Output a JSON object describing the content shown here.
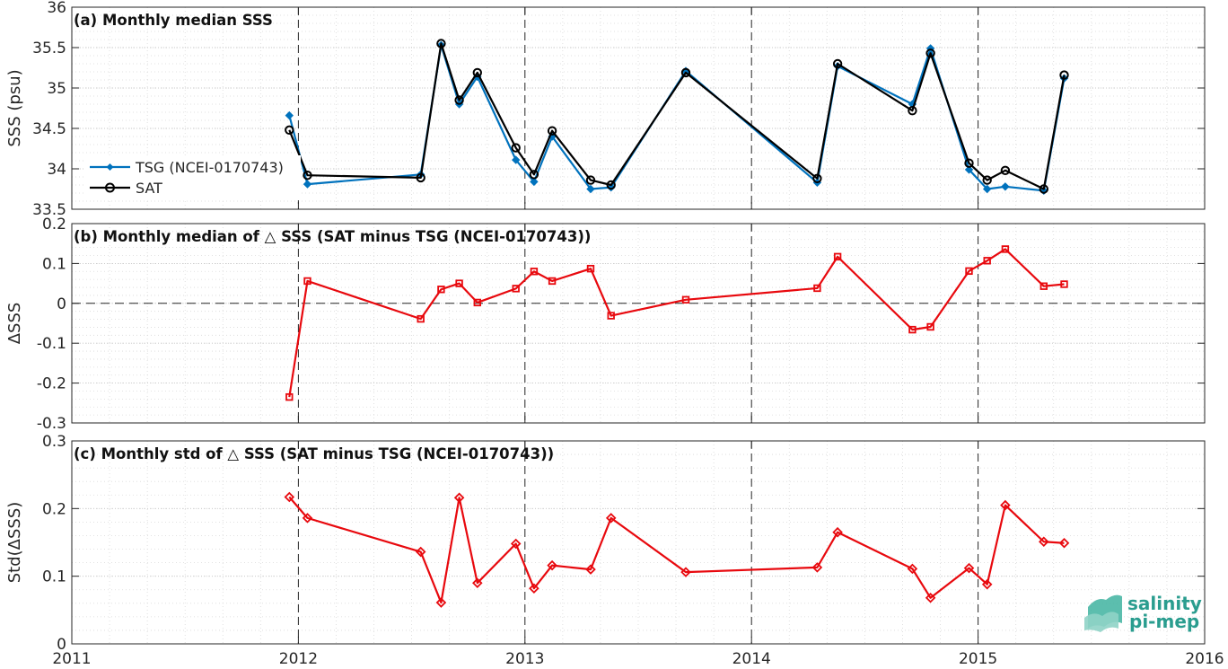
{
  "colors": {
    "tsg": "#0072BD",
    "sat": "#000000",
    "delta": "#E8090E",
    "grid": "#d9d9d9",
    "axis": "#262626",
    "logo": "#2aa198"
  },
  "logo": {
    "line1": "salinity",
    "line2": "pi-mep"
  },
  "chart_data": [
    {
      "type": "line",
      "panel": "a",
      "title": "(a) Monthly median SSS",
      "xlabel": "",
      "ylabel": "SSS (psu)",
      "xlim": [
        2011,
        2016
      ],
      "ylim": [
        33.5,
        36
      ],
      "yticks": [
        33.5,
        34,
        34.5,
        35,
        35.5,
        36
      ],
      "yticklabels": [
        "33.5",
        "34",
        "34.5",
        "35",
        "35.5",
        "36"
      ],
      "grid": "on",
      "legend": "left",
      "x": [
        2011.96,
        2012.04,
        2012.54,
        2012.63,
        2012.71,
        2012.79,
        2012.96,
        2013.04,
        2013.12,
        2013.29,
        2013.38,
        2013.71,
        2014.29,
        2014.38,
        2014.71,
        2014.79,
        2014.96,
        2015.04,
        2015.12,
        2015.29,
        2015.38
      ],
      "series": [
        {
          "name": "TSG (NCEI-0170743)",
          "marker": "diamond",
          "values": [
            34.66,
            33.81,
            33.93,
            35.53,
            34.8,
            35.14,
            34.11,
            33.84,
            34.4,
            33.75,
            33.77,
            35.21,
            33.83,
            35.27,
            34.8,
            35.49,
            33.99,
            33.75,
            33.78,
            33.73,
            35.12
          ]
        },
        {
          "name": "SAT",
          "marker": "circle",
          "values": [
            34.48,
            33.92,
            33.89,
            35.55,
            34.85,
            35.19,
            34.26,
            33.93,
            34.47,
            33.86,
            33.8,
            35.19,
            33.88,
            35.3,
            34.72,
            35.43,
            34.07,
            33.86,
            33.98,
            33.75,
            35.16
          ]
        }
      ]
    },
    {
      "type": "line",
      "panel": "b",
      "title": "(b) Monthly median of △ SSS (SAT minus TSG (NCEI-0170743))",
      "xlabel": "",
      "ylabel": "ΔSSS",
      "xlim": [
        2011,
        2016
      ],
      "ylim": [
        -0.3,
        0.2
      ],
      "yticks": [
        -0.3,
        -0.2,
        -0.1,
        0,
        0.1,
        0.2
      ],
      "yticklabels": [
        "-0.3",
        "-0.2",
        "-0.1",
        "0",
        "0.1",
        "0.2"
      ],
      "grid": "on",
      "x": [
        2011.96,
        2012.04,
        2012.54,
        2012.63,
        2012.71,
        2012.79,
        2012.96,
        2013.04,
        2013.12,
        2013.29,
        2013.38,
        2013.71,
        2014.29,
        2014.38,
        2014.71,
        2014.79,
        2014.96,
        2015.04,
        2015.12,
        2015.29,
        2015.38
      ],
      "series": [
        {
          "marker": "square",
          "values": [
            -0.235,
            0.056,
            -0.039,
            0.035,
            0.05,
            0.002,
            0.037,
            0.08,
            0.056,
            0.087,
            -0.031,
            0.009,
            0.038,
            0.117,
            -0.066,
            -0.059,
            0.081,
            0.107,
            0.136,
            0.043,
            0.048
          ]
        }
      ]
    },
    {
      "type": "line",
      "panel": "c",
      "title": "(c) Monthly std of △ SSS (SAT minus TSG (NCEI-0170743))",
      "xlabel": "",
      "ylabel": "Std(ΔSSS)",
      "xlim": [
        2011,
        2016
      ],
      "ylim": [
        0,
        0.3
      ],
      "yticks": [
        0,
        0.1,
        0.2,
        0.3
      ],
      "yticklabels": [
        "0",
        "0.1",
        "0.2",
        "0.3"
      ],
      "xticks": [
        2011,
        2012,
        2013,
        2014,
        2015,
        2016
      ],
      "xticklabels": [
        "2011",
        "2012",
        "2013",
        "2014",
        "2015",
        "2016"
      ],
      "grid": "on",
      "x": [
        2011.96,
        2012.04,
        2012.54,
        2012.63,
        2012.71,
        2012.79,
        2012.96,
        2013.04,
        2013.12,
        2013.29,
        2013.38,
        2013.71,
        2014.29,
        2014.38,
        2014.71,
        2014.79,
        2014.96,
        2015.04,
        2015.12,
        2015.29,
        2015.38
      ],
      "series": [
        {
          "marker": "diamond",
          "values": [
            0.217,
            0.186,
            0.136,
            0.061,
            0.216,
            0.09,
            0.148,
            0.082,
            0.116,
            0.11,
            0.186,
            0.106,
            0.113,
            0.165,
            0.111,
            0.068,
            0.112,
            0.088,
            0.205,
            0.151,
            0.149
          ]
        }
      ]
    }
  ]
}
